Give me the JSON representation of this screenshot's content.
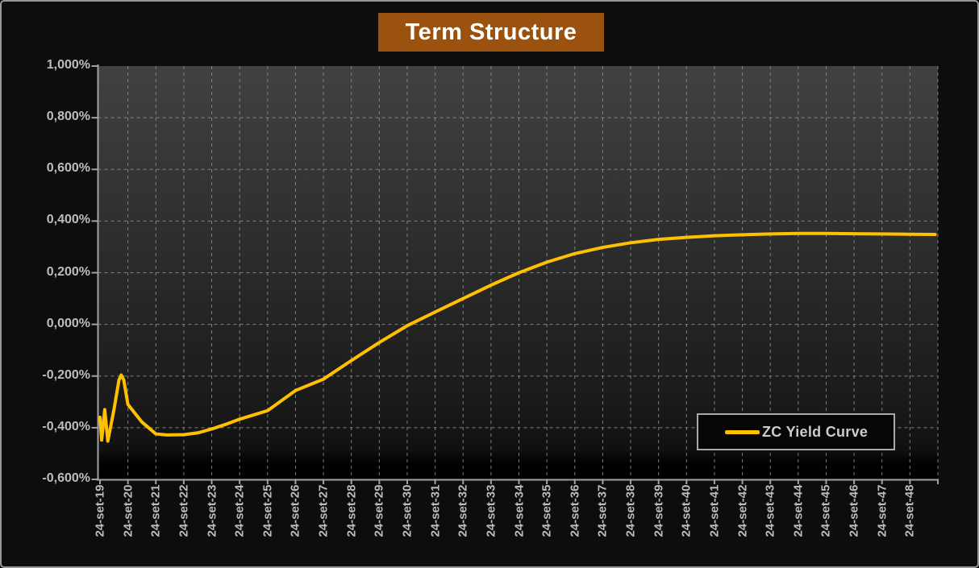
{
  "title": {
    "text": "Term Structure",
    "bg": "#9a520e",
    "color": "#ffffff"
  },
  "legend": {
    "label": "ZC Yield Curve",
    "line_color": "#ffc000"
  },
  "colors": {
    "frame_background": "#0d0d0d",
    "frame_border": "#989898",
    "gridline": "#8f8f8f",
    "axis": "#a2a2a2",
    "tick_label": "#bdbdbd",
    "series": "#ffc000"
  },
  "chart_data": {
    "type": "line",
    "title": "Term Structure",
    "xlabel": "",
    "ylabel": "",
    "grid": "dashed",
    "legend_position": "inside-bottom-right",
    "legend_entries": [
      "ZC Yield Curve"
    ],
    "ylim": [
      -0.6,
      1.0
    ],
    "y_ticks": {
      "values": [
        1.0,
        0.8,
        0.6,
        0.4,
        0.2,
        0.0,
        -0.2,
        -0.4,
        -0.6
      ],
      "labels": [
        "1,000%",
        "0,800%",
        "0,600%",
        "0,400%",
        "0,200%",
        "0,000%",
        "-0,200%",
        "-0,400%",
        "-0,600%"
      ]
    },
    "x_categories": [
      "24-set-19",
      "24-set-20",
      "24-set-21",
      "24-set-22",
      "24-set-23",
      "24-set-24",
      "24-set-25",
      "24-set-26",
      "24-set-27",
      "24-set-28",
      "24-set-29",
      "24-set-30",
      "24-set-31",
      "24-set-32",
      "24-set-33",
      "24-set-34",
      "24-set-35",
      "24-set-36",
      "24-set-37",
      "24-set-38",
      "24-set-39",
      "24-set-40",
      "24-set-41",
      "24-set-42",
      "24-set-43",
      "24-set-44",
      "24-set-45",
      "24-set-46",
      "24-set-47",
      "24-set-48"
    ],
    "series": [
      {
        "name": "ZC Yield Curve",
        "color": "#ffc000",
        "unit": "%",
        "points": [
          [
            0.0,
            -0.36
          ],
          [
            0.06,
            -0.448
          ],
          [
            0.17,
            -0.33
          ],
          [
            0.28,
            -0.452
          ],
          [
            0.5,
            -0.33
          ],
          [
            0.68,
            -0.215
          ],
          [
            0.76,
            -0.196
          ],
          [
            0.85,
            -0.215
          ],
          [
            1.0,
            -0.31
          ],
          [
            1.5,
            -0.378
          ],
          [
            2.0,
            -0.424
          ],
          [
            2.4,
            -0.428
          ],
          [
            3.0,
            -0.427
          ],
          [
            3.5,
            -0.42
          ],
          [
            4.0,
            -0.405
          ],
          [
            4.5,
            -0.387
          ],
          [
            5.0,
            -0.367
          ],
          [
            6.0,
            -0.334
          ],
          [
            7.0,
            -0.256
          ],
          [
            8.0,
            -0.212
          ],
          [
            9.0,
            -0.14
          ],
          [
            10.0,
            -0.07
          ],
          [
            11.0,
            -0.005
          ],
          [
            12.0,
            0.048
          ],
          [
            13.0,
            0.1
          ],
          [
            14.0,
            0.152
          ],
          [
            15.0,
            0.2
          ],
          [
            16.0,
            0.241
          ],
          [
            17.0,
            0.274
          ],
          [
            18.0,
            0.298
          ],
          [
            19.0,
            0.316
          ],
          [
            20.0,
            0.329
          ],
          [
            21.0,
            0.337
          ],
          [
            22.0,
            0.343
          ],
          [
            23.0,
            0.347
          ],
          [
            24.0,
            0.35
          ],
          [
            25.0,
            0.352
          ],
          [
            26.0,
            0.352
          ],
          [
            27.0,
            0.351
          ],
          [
            28.0,
            0.35
          ],
          [
            29.0,
            0.349
          ],
          [
            29.9,
            0.348
          ]
        ]
      }
    ]
  }
}
